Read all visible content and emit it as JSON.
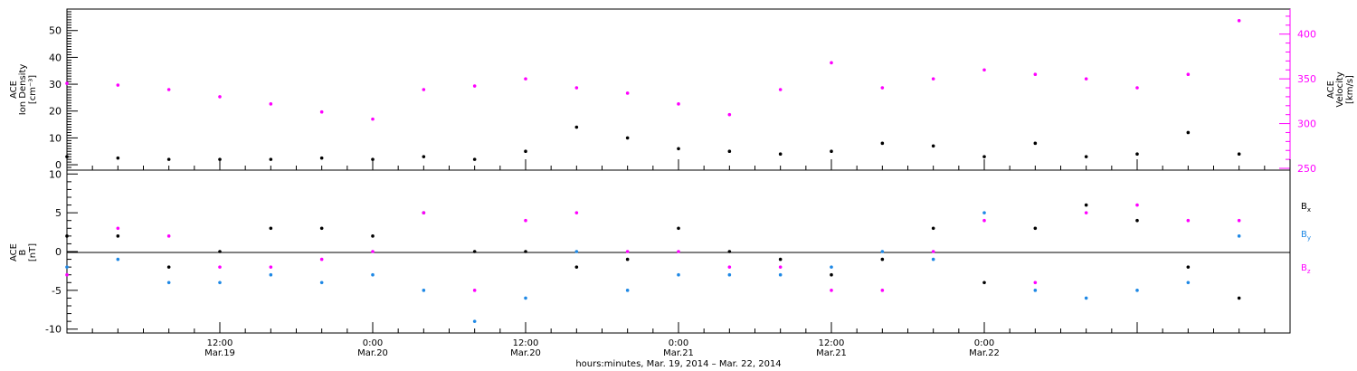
{
  "chart_data": [
    {
      "type": "scatter",
      "panel": "top",
      "y_left": {
        "label_lines": [
          "ACE",
          "Ion Density",
          "[cm⁻³]"
        ],
        "ylim": [
          -2,
          58
        ],
        "ticks": [
          0,
          10,
          20,
          30,
          40,
          50
        ]
      },
      "y_right": {
        "label_lines": [
          "ACE",
          "Velocity",
          "[km/s]"
        ],
        "ylim": [
          248,
          428
        ],
        "ticks": [
          250,
          300,
          350,
          400
        ],
        "color": "#ff00ff"
      },
      "xlim_hours": [
        0,
        96
      ],
      "series": [
        {
          "name_hidden": "density",
          "color": "#000000",
          "axis": "left",
          "x": [
            0,
            4,
            8,
            12,
            16,
            20,
            24,
            28,
            32,
            36,
            40,
            44,
            48,
            52,
            56,
            60,
            64,
            68,
            72,
            76,
            80,
            84,
            88,
            92
          ],
          "y": [
            3,
            2.5,
            2,
            2,
            2,
            2.5,
            2,
            3,
            2,
            5,
            14,
            10,
            6,
            5,
            4,
            5,
            8,
            7,
            3,
            8,
            3,
            4,
            12,
            4
          ]
        },
        {
          "name_hidden": "velocity",
          "color": "#ff00ff",
          "axis": "right",
          "x": [
            0,
            4,
            8,
            12,
            16,
            20,
            24,
            28,
            32,
            36,
            40,
            44,
            48,
            52,
            56,
            60,
            64,
            68,
            72,
            76,
            80,
            84,
            88,
            92
          ],
          "y": [
            345,
            343,
            338,
            330,
            322,
            313,
            305,
            338,
            342,
            350,
            340,
            334,
            322,
            310,
            338,
            368,
            340,
            350,
            360,
            355,
            350,
            340,
            355,
            415
          ]
        }
      ]
    },
    {
      "type": "scatter",
      "panel": "bottom",
      "y_left": {
        "label_lines": [
          "ACE",
          "B",
          "[nT]"
        ],
        "ylim": [
          -10.5,
          10.5
        ],
        "ticks": [
          -10,
          -5,
          0,
          5,
          10
        ]
      },
      "xlim_hours": [
        0,
        96
      ],
      "series": [
        {
          "name": "Bₓ",
          "legend_main": "B",
          "legend_sub": "x",
          "color": "#000000",
          "x": [
            0,
            4,
            8,
            12,
            16,
            20,
            24,
            28,
            32,
            36,
            40,
            44,
            48,
            52,
            56,
            60,
            64,
            68,
            72,
            76,
            80,
            84,
            88,
            92
          ],
          "y": [
            2,
            2,
            -2,
            0,
            3,
            3,
            2,
            5,
            0,
            0,
            -2,
            -1,
            3,
            0,
            -1,
            -3,
            -1,
            3,
            -4,
            3,
            6,
            4,
            -2,
            -6
          ]
        },
        {
          "name": "Bᵧ",
          "legend_main": "B",
          "legend_sub": "y",
          "color": "#1e88e5",
          "x": [
            0,
            4,
            8,
            12,
            16,
            20,
            24,
            28,
            32,
            36,
            40,
            44,
            48,
            52,
            56,
            60,
            64,
            68,
            72,
            76,
            80,
            84,
            88,
            92
          ],
          "y": [
            -2,
            -1,
            -4,
            -4,
            -3,
            -4,
            -3,
            -5,
            -9,
            -6,
            0,
            -5,
            -3,
            -3,
            -3,
            -2,
            0,
            -1,
            5,
            -5,
            -6,
            -5,
            -4,
            2
          ]
        },
        {
          "name": "Bᶻ",
          "legend_main": "B",
          "legend_sub": "z",
          "color": "#ff00ff",
          "x": [
            0,
            4,
            8,
            12,
            16,
            20,
            24,
            28,
            32,
            36,
            40,
            44,
            48,
            52,
            56,
            60,
            64,
            68,
            72,
            76,
            80,
            84,
            88,
            92
          ],
          "y": [
            -3,
            3,
            2,
            -2,
            -2,
            -1,
            0,
            5,
            -5,
            4,
            5,
            0,
            0,
            -2,
            -2,
            -5,
            -5,
            0,
            4,
            -4,
            5,
            6,
            4,
            4
          ]
        }
      ]
    }
  ],
  "x_axis": {
    "ticks": [
      {
        "hour": 12,
        "time": "12:00",
        "date": "Mar.19"
      },
      {
        "hour": 24,
        "time": "0:00",
        "date": "Mar.20"
      },
      {
        "hour": 36,
        "time": "12:00",
        "date": "Mar.20"
      },
      {
        "hour": 48,
        "time": "0:00",
        "date": "Mar.21"
      },
      {
        "hour": 60,
        "time": "12:00",
        "date": "Mar.21"
      },
      {
        "hour": 72,
        "time": "0:00",
        "date": "Mar.22"
      }
    ],
    "xlabel": "hours:minutes, Mar. 19, 2014 – Mar. 22, 2014"
  },
  "colors": {
    "density": "#000000",
    "velocity": "#ff00ff",
    "bx": "#000000",
    "by": "#1e88e5",
    "bz": "#ff00ff"
  }
}
